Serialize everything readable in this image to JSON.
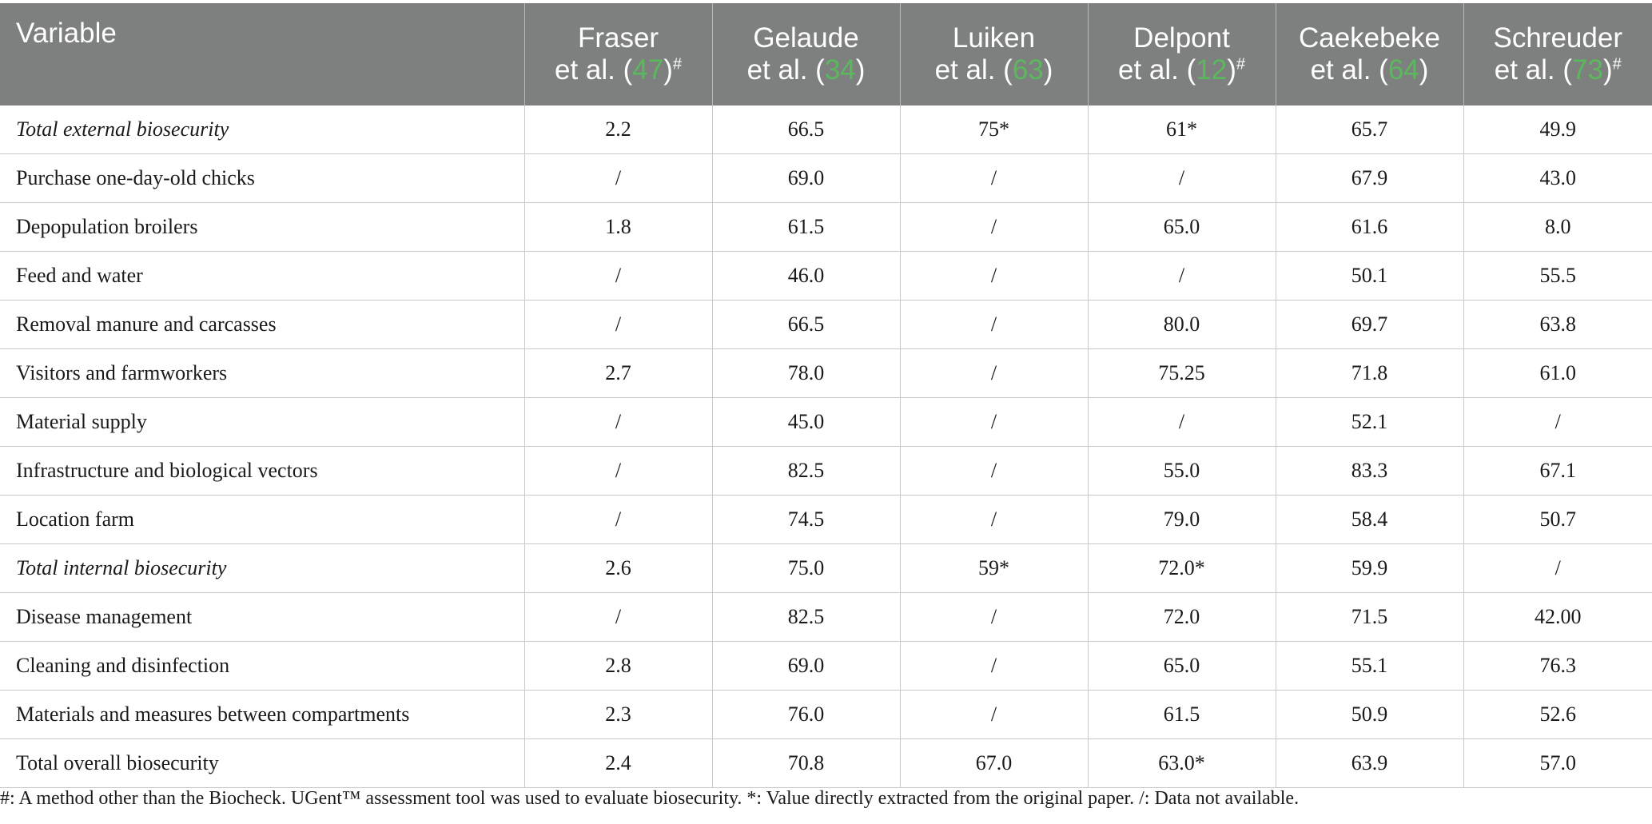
{
  "table": {
    "header": {
      "variable_label": "Variable",
      "columns": [
        {
          "line1": "Fraser",
          "line2_prefix": "et al. (",
          "cite": "47",
          "line2_suffix": ")",
          "mark": "#"
        },
        {
          "line1": "Gelaude",
          "line2_prefix": "et al. (",
          "cite": "34",
          "line2_suffix": ")",
          "mark": ""
        },
        {
          "line1": "Luiken",
          "line2_prefix": "et al. (",
          "cite": "63",
          "line2_suffix": ")",
          "mark": ""
        },
        {
          "line1": "Delpont",
          "line2_prefix": "et al. (",
          "cite": "12",
          "line2_suffix": ")",
          "mark": "#"
        },
        {
          "line1": "Caekebeke",
          "line2_prefix": "et al. (",
          "cite": "64",
          "line2_suffix": ")",
          "mark": ""
        },
        {
          "line1": "Schreuder",
          "line2_prefix": "et al. (",
          "cite": "73",
          "line2_suffix": ")",
          "mark": "#"
        }
      ]
    },
    "rows": [
      {
        "label": "Total external biosecurity",
        "italic": true,
        "values": [
          "2.2",
          "66.5",
          "75*",
          "61*",
          "65.7",
          "49.9"
        ]
      },
      {
        "label": "Purchase one-day-old chicks",
        "italic": false,
        "values": [
          "/",
          "69.0",
          "/",
          "/",
          "67.9",
          "43.0"
        ]
      },
      {
        "label": "Depopulation broilers",
        "italic": false,
        "values": [
          "1.8",
          "61.5",
          "/",
          "65.0",
          "61.6",
          "8.0"
        ]
      },
      {
        "label": "Feed and water",
        "italic": false,
        "values": [
          "/",
          "46.0",
          "/",
          "/",
          "50.1",
          "55.5"
        ]
      },
      {
        "label": "Removal manure and carcasses",
        "italic": false,
        "values": [
          "/",
          "66.5",
          "/",
          "80.0",
          "69.7",
          "63.8"
        ]
      },
      {
        "label": "Visitors and farmworkers",
        "italic": false,
        "values": [
          "2.7",
          "78.0",
          "/",
          "75.25",
          "71.8",
          "61.0"
        ]
      },
      {
        "label": "Material supply",
        "italic": false,
        "values": [
          "/",
          "45.0",
          "/",
          "/",
          "52.1",
          "/"
        ]
      },
      {
        "label": "Infrastructure and biological vectors",
        "italic": false,
        "values": [
          "/",
          "82.5",
          "/",
          "55.0",
          "83.3",
          "67.1"
        ]
      },
      {
        "label": "Location farm",
        "italic": false,
        "values": [
          "/",
          "74.5",
          "/",
          "79.0",
          "58.4",
          "50.7"
        ]
      },
      {
        "label": "Total internal biosecurity",
        "italic": true,
        "values": [
          "2.6",
          "75.0",
          "59*",
          "72.0*",
          "59.9",
          "/"
        ]
      },
      {
        "label": "Disease management",
        "italic": false,
        "values": [
          "/",
          "82.5",
          "/",
          "72.0",
          "71.5",
          "42.00"
        ]
      },
      {
        "label": "Cleaning and disinfection",
        "italic": false,
        "values": [
          "2.8",
          "69.0",
          "/",
          "65.0",
          "55.1",
          "76.3"
        ]
      },
      {
        "label": "Materials and measures between compartments",
        "italic": false,
        "values": [
          "2.3",
          "76.0",
          "/",
          "61.5",
          "50.9",
          "52.6"
        ]
      },
      {
        "label": "Total overall biosecurity",
        "italic": false,
        "values": [
          "2.4",
          "70.8",
          "67.0",
          "63.0*",
          "63.9",
          "57.0"
        ]
      }
    ]
  },
  "footnote": "#: A method other than the Biocheck. UGent™ assessment tool was used to evaluate biosecurity. *: Value directly extracted from the original paper. /: Data not available.",
  "colors": {
    "header_background": "#7e807f",
    "header_text": "#ffffff",
    "citation_link": "#5cb85c",
    "grid_line": "#c9c9c9"
  }
}
